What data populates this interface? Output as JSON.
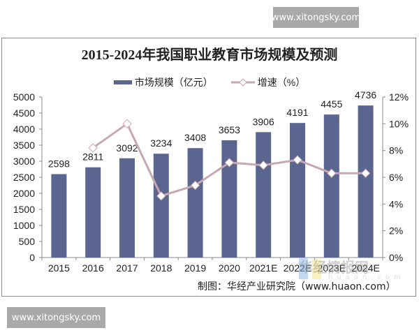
{
  "watermarks": {
    "top": "www.xitongsky.com",
    "bottom": "www.xitongsky.com",
    "logo_text": "华经情报网",
    "logo_sub": "huaon.com"
  },
  "source": "制图：华经产业研究院（www.huaon.com）",
  "colors": {
    "bar": "#5a6590",
    "line": "#c8a8b0",
    "marker_fill": "#ffffff"
  },
  "chart_data": {
    "type": "bar",
    "title": "2015-2024年我国职业教育市场规模及预测",
    "categories": [
      "2015",
      "2016",
      "2017",
      "2018",
      "2019",
      "2020",
      "2021E",
      "2022E",
      "2023E",
      "2024E"
    ],
    "series": [
      {
        "name": "市场规模（亿元）",
        "type": "bar",
        "axis": "left",
        "values": [
          2598,
          2811,
          3092,
          3234,
          3408,
          3653,
          3906,
          4191,
          4455,
          4736
        ]
      },
      {
        "name": "增速（%）",
        "type": "line",
        "axis": "right",
        "values": [
          null,
          8.2,
          10.0,
          4.6,
          5.4,
          7.1,
          6.9,
          7.3,
          6.3,
          6.3
        ]
      }
    ],
    "legend": [
      "市场规模（亿元）",
      "增速（%）"
    ],
    "legend_position": "top",
    "xlabel": "",
    "ylabel": "",
    "y2label": "",
    "ylim": [
      0,
      5000
    ],
    "y2lim": [
      0,
      12
    ],
    "yticks": [
      "0",
      "500",
      "1000",
      "1500",
      "2000",
      "2500",
      "3000",
      "3500",
      "4000",
      "4500",
      "5000"
    ],
    "y2ticks": [
      "0%",
      "2%",
      "4%",
      "6%",
      "8%",
      "10%",
      "12%"
    ],
    "grid": false
  }
}
